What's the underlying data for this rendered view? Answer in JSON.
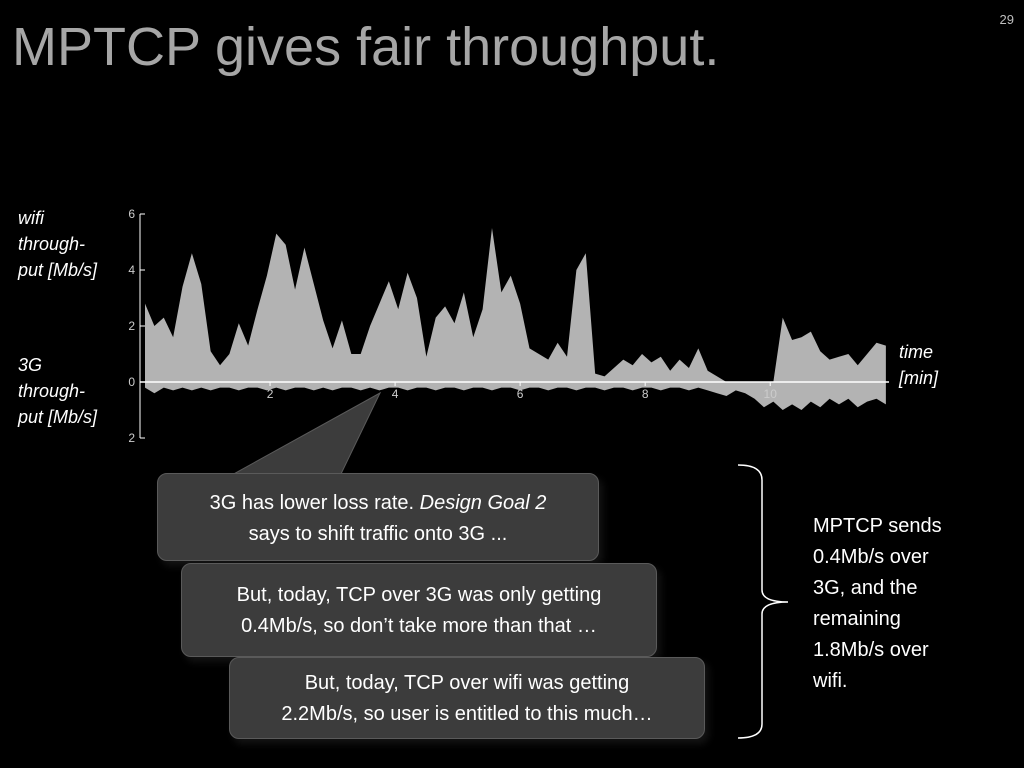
{
  "slide": {
    "title": "MPTCP gives fair throughput.",
    "page_number": "29"
  },
  "labels": {
    "wifi_line1": "wifi",
    "wifi_line2": "through-",
    "wifi_line3": "put [Mb/s]",
    "g3_line1": "3G",
    "g3_line2": "through-",
    "g3_line3": "put [Mb/s]",
    "time_line1": "time",
    "time_line2": "[min]"
  },
  "callouts": {
    "c1_text_a": "3G has lower loss rate. ",
    "c1_em": "Design Goal 2",
    "c1_line2": "says to shift traffic onto 3G ...",
    "c2_line1": "But, today, TCP over 3G was only getting",
    "c2_line2": "0.4Mb/s, so don’t take more than that …",
    "c3_line1": "But, today, TCP over wifi was getting",
    "c3_line2": "2.2Mb/s, so user is entitled to this much…"
  },
  "summary": {
    "line1": "MPTCP sends",
    "line2": "0.4Mb/s over",
    "line3": "3G, and the",
    "line4": "remaining",
    "line5": "1.8Mb/s over",
    "line6": "wifi."
  },
  "colors": {
    "background": "#000000",
    "title": "#a6a6a6",
    "area_fill": "#b3b3b3",
    "axis": "#ffffff",
    "callout_bg": "#3c3c3c"
  },
  "chart_data": {
    "type": "area",
    "x_tick_labels": [
      "2",
      "4",
      "6",
      "8",
      "10"
    ],
    "x_ticks": [
      2,
      4,
      6,
      8,
      10
    ],
    "y_tick_labels": [
      "6",
      "4",
      "2",
      "0",
      "2"
    ],
    "y_ticks": [
      6,
      4,
      2,
      0,
      -2
    ],
    "ylim": [
      -2,
      6
    ],
    "xlim": [
      0,
      11.9
    ],
    "grid": false,
    "series": [
      {
        "x": [
          0,
          0.15,
          0.3,
          0.45,
          0.6,
          0.75,
          0.9,
          1.05,
          1.2,
          1.35,
          1.5,
          1.65,
          1.8,
          1.95,
          2.1,
          2.25,
          2.4,
          2.55,
          2.7,
          2.85,
          3.0,
          3.15,
          3.3,
          3.45,
          3.6,
          3.75,
          3.9,
          4.05,
          4.2,
          4.35,
          4.5,
          4.65,
          4.8,
          4.95,
          5.1,
          5.25,
          5.4,
          5.55,
          5.7,
          5.85,
          6.0,
          6.15,
          6.3,
          6.45,
          6.6,
          6.75,
          6.9,
          7.05,
          7.2,
          7.35,
          7.5,
          7.65,
          7.8,
          7.95,
          8.1,
          8.25,
          8.4,
          8.55,
          8.7,
          8.85,
          9.0,
          9.15,
          9.3,
          9.45,
          9.6,
          9.75,
          9.9,
          10.05,
          10.2,
          10.35,
          10.5,
          10.65,
          10.8,
          10.95,
          11.1,
          11.25,
          11.4,
          11.55,
          11.7,
          11.85
        ],
        "values": [
          2.8,
          2.0,
          2.3,
          1.6,
          3.4,
          4.6,
          3.5,
          1.1,
          0.6,
          1.0,
          2.1,
          1.3,
          2.6,
          3.8,
          5.3,
          4.9,
          3.3,
          4.8,
          3.5,
          2.2,
          1.2,
          2.2,
          1.0,
          1.0,
          2.0,
          2.8,
          3.6,
          2.6,
          3.9,
          3.0,
          0.9,
          2.3,
          2.7,
          2.1,
          3.2,
          1.6,
          2.6,
          5.5,
          3.2,
          3.8,
          2.8,
          1.2,
          1.0,
          0.8,
          1.4,
          0.9,
          4.0,
          4.6,
          0.3,
          0.2,
          0.5,
          0.8,
          0.6,
          1.0,
          0.7,
          0.9,
          0.4,
          0.8,
          0.5,
          1.2,
          0.4,
          0.2,
          0.0,
          0.0,
          0.0,
          0.0,
          0.0,
          0.0,
          2.3,
          1.5,
          1.6,
          1.8,
          1.1,
          0.8,
          0.9,
          1.0,
          0.6,
          1.0,
          1.4,
          1.3
        ]
      },
      {
        "x": [
          0,
          0.15,
          0.3,
          0.45,
          0.6,
          0.75,
          0.9,
          1.05,
          1.2,
          1.35,
          1.5,
          1.65,
          1.8,
          1.95,
          2.1,
          2.25,
          2.4,
          2.55,
          2.7,
          2.85,
          3.0,
          3.15,
          3.3,
          3.45,
          3.6,
          3.75,
          3.9,
          4.05,
          4.2,
          4.35,
          4.5,
          4.65,
          4.8,
          4.95,
          5.1,
          5.25,
          5.4,
          5.55,
          5.7,
          5.85,
          6.0,
          6.15,
          6.3,
          6.45,
          6.6,
          6.75,
          6.9,
          7.05,
          7.2,
          7.35,
          7.5,
          7.65,
          7.8,
          7.95,
          8.1,
          8.25,
          8.4,
          8.55,
          8.7,
          8.85,
          9.0,
          9.15,
          9.3,
          9.45,
          9.6,
          9.75,
          9.9,
          10.05,
          10.2,
          10.35,
          10.5,
          10.65,
          10.8,
          10.95,
          11.1,
          11.25,
          11.4,
          11.55,
          11.7,
          11.85
        ],
        "values": [
          -0.2,
          -0.4,
          -0.2,
          -0.3,
          -0.2,
          -0.3,
          -0.2,
          -0.3,
          -0.2,
          -0.2,
          -0.3,
          -0.2,
          -0.2,
          -0.3,
          -0.2,
          -0.3,
          -0.2,
          -0.2,
          -0.3,
          -0.2,
          -0.3,
          -0.2,
          -0.2,
          -0.3,
          -0.2,
          -0.3,
          -0.2,
          -0.2,
          -0.3,
          -0.2,
          -0.2,
          -0.3,
          -0.2,
          -0.2,
          -0.3,
          -0.2,
          -0.2,
          -0.3,
          -0.2,
          -0.2,
          -0.3,
          -0.2,
          -0.2,
          -0.3,
          -0.2,
          -0.2,
          -0.3,
          -0.2,
          -0.2,
          -0.3,
          -0.2,
          -0.2,
          -0.3,
          -0.2,
          -0.2,
          -0.3,
          -0.2,
          -0.2,
          -0.3,
          -0.2,
          -0.3,
          -0.4,
          -0.5,
          -0.3,
          -0.4,
          -0.6,
          -0.9,
          -0.7,
          -1.0,
          -0.8,
          -1.0,
          -0.7,
          -0.9,
          -0.6,
          -0.8,
          -0.6,
          -0.9,
          -0.7,
          -0.6,
          -0.8
        ]
      }
    ]
  }
}
